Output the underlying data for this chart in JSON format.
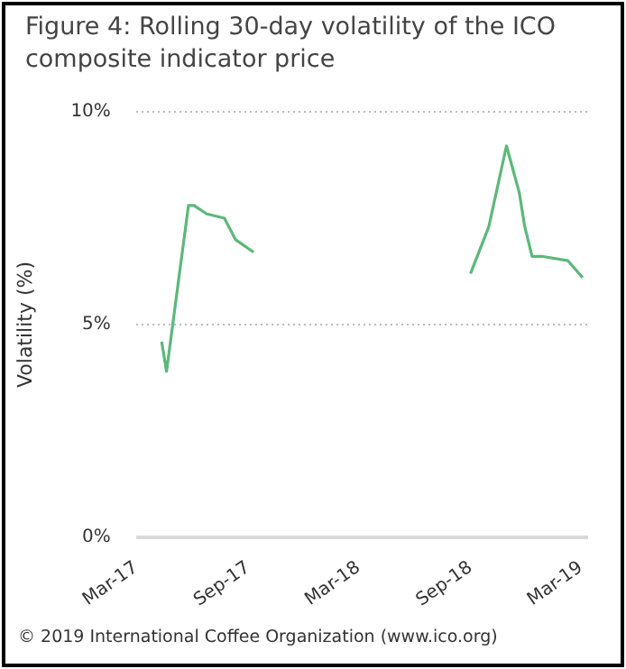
{
  "chart_data": {
    "type": "line",
    "title": "Figure 4: Rolling 30-day volatility of the ICO composite indicator price",
    "ylabel": "Volatility (%)",
    "x": [
      "2017-04-12",
      "2017-04-20",
      "2017-05-26",
      "2017-06-04",
      "2017-06-25",
      "2017-07-24",
      "2017-08-11",
      "2017-09-10",
      "2018-03-01",
      "2018-09-01",
      "2018-10-01",
      "2018-10-30",
      "2018-11-20",
      "2018-11-29",
      "2018-12-11",
      "2018-12-29",
      "2019-02-08",
      "2019-03-04"
    ],
    "series": [
      {
        "color": "#5cb87a",
        "values": [
          4.6,
          3.9,
          7.8,
          7.8,
          7.6,
          7.5,
          7.0,
          6.7,
          null,
          6.2,
          7.3,
          9.2,
          8.1,
          7.3,
          6.6,
          6.6,
          6.5,
          6.1
        ]
      }
    ],
    "xlim": [
      "2017-03-01",
      "2019-03-13"
    ],
    "xticks": [
      {
        "value": "2017-03-01",
        "label": "Mar-17"
      },
      {
        "value": "2017-09-01",
        "label": "Sep-17"
      },
      {
        "value": "2018-03-01",
        "label": "Mar-18"
      },
      {
        "value": "2018-09-01",
        "label": "Sep-18"
      },
      {
        "value": "2019-03-01",
        "label": "Mar-19"
      }
    ],
    "ylim": [
      0,
      10
    ],
    "yticks": [
      {
        "value": 0,
        "label": "0%"
      },
      {
        "value": 5,
        "label": "5%"
      },
      {
        "value": 10,
        "label": "10%"
      }
    ],
    "grid": "y",
    "legend": false,
    "marker": "none",
    "line_style": "solid",
    "annotations": [
      "© 2019 International Coffee Organization (www.ico.org)"
    ]
  }
}
